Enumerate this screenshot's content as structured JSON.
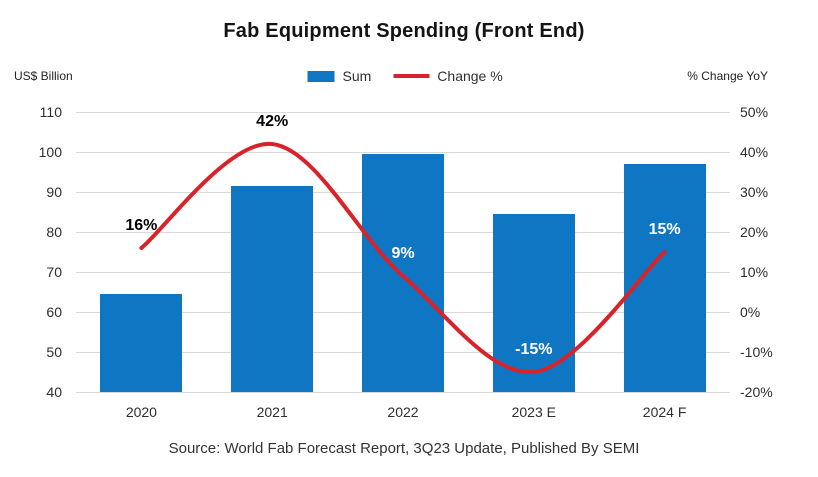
{
  "source": "Source: World Fab Forecast Report, 3Q23 Update, Published By SEMI",
  "chart_data": {
    "type": "combo-bar-line",
    "title": "Fab Equipment Spending (Front End)",
    "grid": true,
    "legend_position": "top-center",
    "categories": [
      "2020",
      "2021",
      "2022",
      "2023 E",
      "2024 F"
    ],
    "left_axis": {
      "label": "US$ Billion",
      "min": 40,
      "max": 110,
      "step": 10,
      "ticks": [
        "110",
        "100",
        "90",
        "80",
        "70",
        "60",
        "50",
        "40"
      ]
    },
    "right_axis": {
      "label": "% Change YoY",
      "min": -20,
      "max": 50,
      "step": 10,
      "ticks": [
        "50%",
        "40%",
        "30%",
        "20%",
        "10%",
        "0%",
        "-10%",
        "-20%"
      ]
    },
    "series": [
      {
        "name": "Sum",
        "type": "bar",
        "axis": "left",
        "color": "#0e76c2",
        "values": [
          64.5,
          91.5,
          99.5,
          84.5,
          97
        ]
      },
      {
        "name": "Change %",
        "type": "line",
        "axis": "right",
        "color": "#d8232a",
        "smooth": true,
        "values": [
          16,
          42,
          9,
          -15,
          15
        ],
        "labels": [
          "16%",
          "42%",
          "9%",
          "-15%",
          "15%"
        ],
        "label_colors": [
          "#000000",
          "#000000",
          "#ffffff",
          "#ffffff",
          "#ffffff"
        ]
      }
    ]
  }
}
